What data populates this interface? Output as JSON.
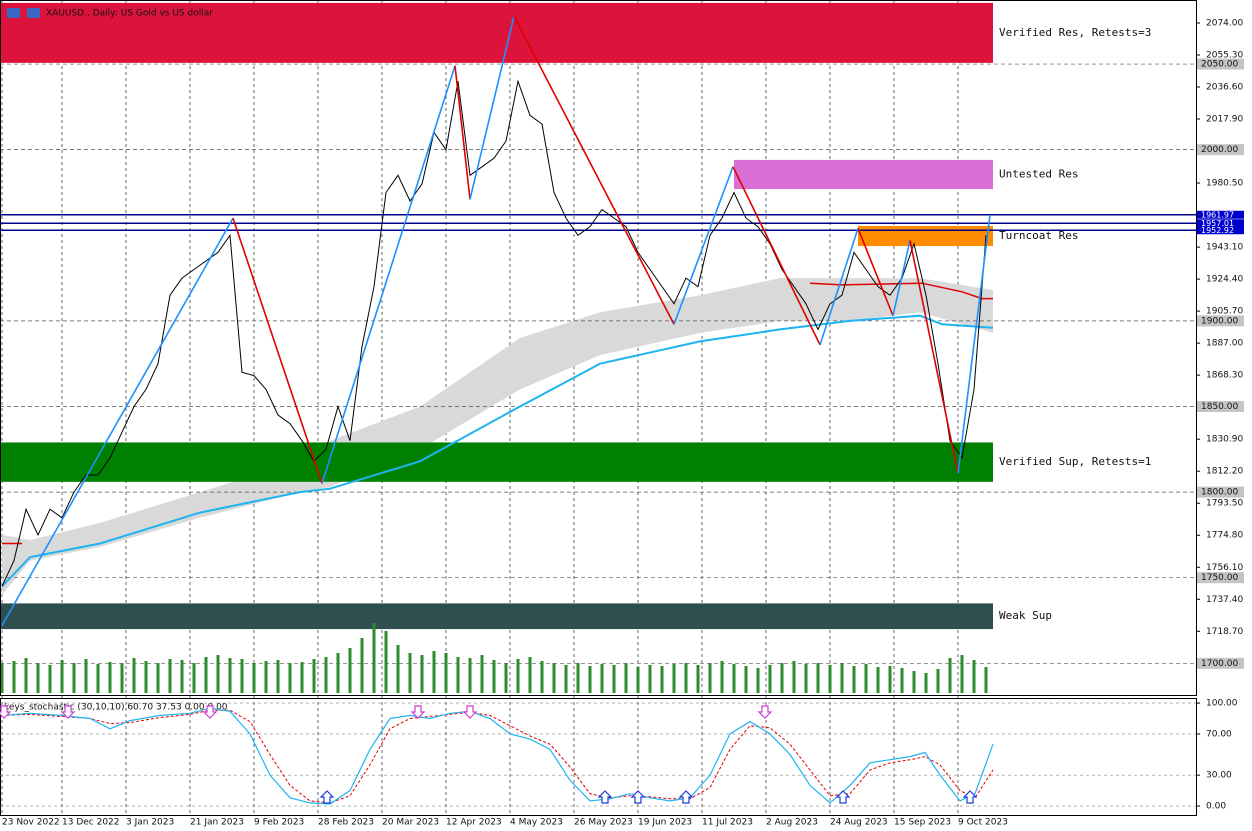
{
  "chart_data": {
    "type": "line",
    "title": "XAUUSD., Daily: US Gold vs US dollar",
    "color": "#000000",
    "xlim": [
      -0.5,
      298.5
    ],
    "ylim": [
      1681.5,
      2087.4
    ],
    "xticks": [
      {
        "value": 0,
        "label": "23 Nov 2022"
      },
      {
        "value": 15,
        "label": "13 Dec 2022"
      },
      {
        "value": 31,
        "label": "3 Jan 2023"
      },
      {
        "value": 47,
        "label": "21 Jan 2023"
      },
      {
        "value": 63,
        "label": "9 Feb 2023"
      },
      {
        "value": 79,
        "label": "28 Feb 2023"
      },
      {
        "value": 95,
        "label": "20 Mar 2023"
      },
      {
        "value": 111,
        "label": "12 Apr 2023"
      },
      {
        "value": 127,
        "label": "4 May 2023"
      },
      {
        "value": 143,
        "label": "26 May 2023"
      },
      {
        "value": 159,
        "label": "19 Jun 2023"
      },
      {
        "value": 175,
        "label": "11 Jul 2023"
      },
      {
        "value": 191,
        "label": "2 Aug 2023"
      },
      {
        "value": 207,
        "label": "24 Aug 2023"
      },
      {
        "value": 223,
        "label": "15 Sep 2023"
      },
      {
        "value": 239,
        "label": "9 Oct 2023"
      }
    ],
    "yticks": [
      {
        "value": 2074,
        "label": "2074.00"
      },
      {
        "value": 2055.3,
        "label": "2055.30"
      },
      {
        "value": 2036.6,
        "label": "2036.60"
      },
      {
        "value": 2017.9,
        "label": "2017.90"
      },
      {
        "value": 1980.5,
        "label": "1980.50"
      },
      {
        "value": 1943.1,
        "label": "1943.10"
      },
      {
        "value": 1924.4,
        "label": "1924.40"
      },
      {
        "value": 1905.7,
        "label": "1905.70"
      },
      {
        "value": 1887,
        "label": "1887.00"
      },
      {
        "value": 1868.3,
        "label": "1868.30"
      },
      {
        "value": 1830.9,
        "label": "1830.90"
      },
      {
        "value": 1812.2,
        "label": "1812.20"
      },
      {
        "value": 1793.5,
        "label": "1793.50"
      },
      {
        "value": 1774.8,
        "label": "1774.80"
      },
      {
        "value": 1756.1,
        "label": "1756.10"
      },
      {
        "value": 1737.4,
        "label": "1737.40"
      },
      {
        "value": 1718.7,
        "label": "1718.70"
      }
    ],
    "x": [
      0,
      3,
      6,
      9,
      12,
      15,
      18,
      21,
      24,
      27,
      30,
      33,
      36,
      39,
      42,
      45,
      48,
      51,
      54,
      57,
      60,
      63,
      66,
      69,
      72,
      75,
      78,
      81,
      84,
      87,
      90,
      93,
      96,
      99,
      102,
      105,
      108,
      111,
      114,
      117,
      120,
      123,
      126,
      129,
      132,
      135,
      138,
      141,
      144,
      147,
      150,
      153,
      156,
      159,
      162,
      165,
      168,
      171,
      174,
      177,
      180,
      183,
      186,
      189,
      192,
      195,
      198,
      201,
      204,
      207,
      210,
      213,
      216,
      219,
      222,
      225,
      228,
      231,
      234,
      237,
      240,
      243,
      246
    ],
    "values": [
      1745,
      1760,
      1790,
      1775,
      1790,
      1785,
      1800,
      1810,
      1810,
      1820,
      1835,
      1850,
      1860,
      1875,
      1915,
      1925,
      1930,
      1935,
      1940,
      1950,
      1870,
      1868,
      1860,
      1845,
      1840,
      1830,
      1818,
      1825,
      1850,
      1830,
      1885,
      1920,
      1975,
      1985,
      1970,
      1980,
      2010,
      2000,
      2040,
      1985,
      1990,
      1995,
      2005,
      2040,
      2020,
      2015,
      1975,
      1960,
      1950,
      1955,
      1965,
      1960,
      1955,
      1940,
      1930,
      1920,
      1910,
      1925,
      1920,
      1950,
      1960,
      1975,
      1960,
      1955,
      1945,
      1930,
      1920,
      1910,
      1895,
      1910,
      1915,
      1940,
      1930,
      1920,
      1915,
      1925,
      1945,
      1915,
      1875,
      1830,
      1820,
      1860,
      1950
    ],
    "zones": [
      {
        "label": "Verified Res, Retests=3",
        "from": 2050.7,
        "to": 2085.7,
        "x": [
          -0.5,
          247.75
        ],
        "color": "#dc143c"
      },
      {
        "label": "Untested Res",
        "from": 1977,
        "to": 1994,
        "x": [
          183,
          247.75
        ],
        "color": "#da70d6"
      },
      {
        "label": "Turncoat Res",
        "from": 1943.7,
        "to": 1955.4,
        "x": [
          214,
          247.75
        ],
        "color": "#ff8c00"
      },
      {
        "label": "Verified Sup, Retests=1",
        "from": 1806,
        "to": 1829,
        "x": [
          -0.5,
          247.75
        ],
        "color": "#008000"
      },
      {
        "label": "Weak Sup",
        "from": 1720,
        "to": 1735,
        "x": [
          -0.5,
          247.75
        ],
        "color": "#2f4f4f"
      }
    ],
    "levels": [
      {
        "value": 2050,
        "label": "2050.00"
      },
      {
        "value": 2000,
        "label": "2000.00"
      },
      {
        "value": 1900,
        "label": "1900.00"
      },
      {
        "value": 1850,
        "label": "1850.00"
      },
      {
        "value": 1800,
        "label": "1800.00"
      },
      {
        "value": 1750,
        "label": "1750.00"
      },
      {
        "value": 1700,
        "label": "1700.00"
      }
    ],
    "blue_levels": [
      1961.97,
      1957.01,
      1952.92
    ],
    "ma_band": {
      "color": "#d9d9d9",
      "x": [
        0,
        7,
        24.5,
        49.5,
        74.5,
        82,
        104.5,
        129.5,
        149.5,
        174.5,
        194.5,
        212,
        229.5,
        247.75
      ],
      "upper": [
        1775,
        1772,
        1782,
        1800,
        1818,
        1830,
        1850,
        1890,
        1905,
        1915,
        1925,
        1925,
        1925,
        1918
      ],
      "lower": [
        1740,
        1760,
        1768,
        1785,
        1800,
        1803,
        1825,
        1860,
        1880,
        1893,
        1900,
        1900,
        1905,
        1893
      ]
    },
    "ma_line": {
      "color": "#1eb4f0",
      "x": [
        0,
        7,
        24.5,
        49.5,
        74.5,
        82,
        104.5,
        129.5,
        149.5,
        174.5,
        194.5,
        212,
        229.5,
        235,
        247.75
      ],
      "values": [
        1745,
        1762,
        1770,
        1788,
        1800,
        1802,
        1818,
        1850,
        1875,
        1888,
        1895,
        1900,
        1903,
        1898,
        1896
      ]
    },
    "ma_red": {
      "color": "#e00000",
      "x": [
        0,
        5,
        null,
        202,
        210,
        230,
        240,
        245,
        247.75
      ],
      "values": [
        1770,
        1770,
        null,
        1922,
        1921,
        1922,
        1917,
        1913,
        1913
      ]
    },
    "zigzag": {
      "up_color": "#1e90ff",
      "down_color": "#e00000",
      "x": [
        0,
        57.75,
        80,
        113.25,
        117,
        128,
        168,
        182.75,
        204.5,
        214,
        222.75,
        227,
        239,
        247
      ],
      "values": [
        1722,
        1960,
        1805,
        2049,
        1971,
        2078,
        1898,
        1990,
        1886,
        1954,
        1903,
        1947,
        1811,
        1962
      ]
    },
    "volume": {
      "color": "#2e8b2e",
      "vlim": [
        0,
        100
      ],
      "values": [
        30,
        32,
        35,
        30,
        28,
        33,
        30,
        34,
        29,
        31,
        30,
        35,
        32,
        30,
        34,
        33,
        30,
        36,
        38,
        35,
        34,
        30,
        32,
        33,
        30,
        31,
        34,
        36,
        40,
        45,
        55,
        70,
        62,
        48,
        40,
        38,
        42,
        40,
        36,
        35,
        38,
        33,
        30,
        34,
        36,
        32,
        30,
        28,
        30,
        27,
        29,
        28,
        30,
        26,
        28,
        27,
        29,
        30,
        28,
        30,
        32,
        29,
        27,
        25,
        28,
        30,
        32,
        29,
        30,
        28,
        30,
        27,
        29,
        26,
        27,
        25,
        22,
        20,
        24,
        35,
        38,
        33,
        26
      ]
    },
    "stochastic": {
      "title": "keys_stochastic (30,10,10) 60.70 37.53 0.00 0.00",
      "ylim": [
        -8.7,
        104.9
      ],
      "yticks": [
        {
          "value": 100,
          "label": "100.00"
        },
        {
          "value": 70,
          "label": "70.00"
        },
        {
          "value": 30,
          "label": "30.00"
        },
        {
          "value": 0,
          "label": "0.00"
        }
      ],
      "main_color": "#1eb4f0",
      "signal_color": "#e00000",
      "x": [
        0,
        7,
        14.5,
        22,
        27,
        32,
        39.5,
        47,
        52,
        57,
        62,
        67,
        72,
        77,
        82,
        87,
        92,
        97,
        102,
        107,
        112,
        117,
        122,
        127,
        132,
        137,
        142,
        147,
        152,
        157,
        162,
        167,
        172,
        177,
        182,
        187,
        192,
        197,
        202,
        207,
        212,
        217,
        222,
        227,
        230.75,
        234.5,
        239.5,
        243.25,
        247.75
      ],
      "main": [
        88,
        90,
        88,
        85,
        75,
        83,
        88,
        90,
        95,
        92,
        70,
        30,
        8,
        3,
        2,
        15,
        55,
        85,
        88,
        85,
        90,
        92,
        85,
        70,
        65,
        55,
        25,
        5,
        7,
        12,
        8,
        5,
        8,
        30,
        70,
        82,
        70,
        50,
        20,
        3,
        20,
        42,
        45,
        48,
        52,
        30,
        5,
        12,
        60
      ],
      "signal": [
        88,
        89,
        87,
        85,
        80,
        81,
        86,
        89,
        93,
        93,
        82,
        50,
        20,
        5,
        3,
        10,
        40,
        75,
        85,
        87,
        89,
        91,
        88,
        78,
        68,
        60,
        38,
        12,
        8,
        10,
        9,
        7,
        7,
        18,
        55,
        78,
        76,
        60,
        35,
        10,
        12,
        35,
        42,
        45,
        48,
        40,
        15,
        8,
        35
      ],
      "up_arrows": [
        81.25,
        150.75,
        159,
        171,
        210.25,
        242
      ],
      "down_arrows": [
        0.5,
        16.5,
        52,
        104,
        117,
        190.75
      ]
    }
  }
}
